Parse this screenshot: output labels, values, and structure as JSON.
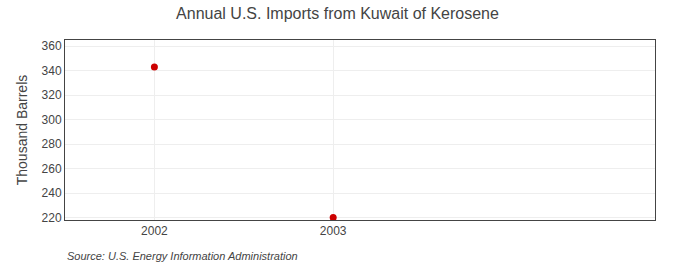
{
  "chart_data": {
    "type": "scatter",
    "title": "Annual U.S. Imports from Kuwait of Kerosene",
    "ylabel": "Thousand Barrels",
    "annotations": [
      "Source: U.S. Energy Information Administration"
    ],
    "x": [
      2002,
      2003
    ],
    "values": [
      343,
      220
    ],
    "color": "#CC0000",
    "marker": "circle",
    "xlim": [
      2001.5,
      2004.8
    ],
    "xticks": [
      2002,
      2003
    ],
    "ylim": [
      218,
      365
    ],
    "yticks": [
      220,
      240,
      260,
      280,
      300,
      320,
      340,
      360
    ],
    "grid": true
  }
}
